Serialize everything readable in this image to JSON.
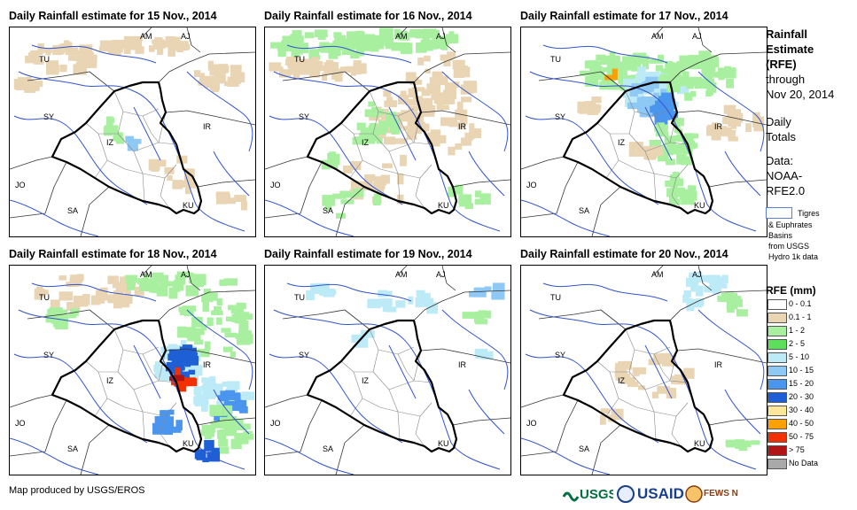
{
  "panels": [
    {
      "title": "Daily Rainfall estimate for 15 Nov., 2014",
      "day": 15
    },
    {
      "title": "Daily Rainfall estimate for 16 Nov., 2014",
      "day": 16
    },
    {
      "title": "Daily Rainfall estimate for 17 Nov., 2014",
      "day": 17
    },
    {
      "title": "Daily Rainfall estimate for 18 Nov., 2014",
      "day": 18
    },
    {
      "title": "Daily Rainfall estimate for 19 Nov., 2014",
      "day": 19
    },
    {
      "title": "Daily Rainfall estimate for 20 Nov., 2014",
      "day": 20
    }
  ],
  "country_labels": {
    "am": "AM",
    "aj": "AJ",
    "tu": "TU",
    "sy": "SY",
    "ir": "IR",
    "iz": "IZ",
    "jo": "JO",
    "sa": "SA",
    "ku": "KU"
  },
  "side": {
    "heading_1": "Rainfall",
    "heading_2": "Estimate",
    "heading_3": "(RFE)",
    "line_1": "through",
    "line_2": "Nov 20, 2014",
    "daily_1": "Daily",
    "daily_2": "Totals",
    "data_1": "Data:",
    "data_2": "NOAA-",
    "data_3": "RFE2.0",
    "basin_1": "Tigres",
    "basin_2": "& Euphrates",
    "basin_3": "Basins",
    "basin_4": "from USGS",
    "basin_5": "Hydro 1k data"
  },
  "legend": {
    "title": "RFE (mm)",
    "items": [
      {
        "label": "0 - 0.1",
        "color": "#ffffff"
      },
      {
        "label": "0.1 - 1",
        "color": "#e9d5b4"
      },
      {
        "label": "1 - 2",
        "color": "#a8f0a0"
      },
      {
        "label": "2 - 5",
        "color": "#5ce05c"
      },
      {
        "label": "5 - 10",
        "color": "#bdeaf7"
      },
      {
        "label": "10 - 15",
        "color": "#8ec8f5"
      },
      {
        "label": "15 - 20",
        "color": "#4a95ee"
      },
      {
        "label": "20 - 30",
        "color": "#1f5fd6"
      },
      {
        "label": "30 - 40",
        "color": "#fde59a"
      },
      {
        "label": "40 - 50",
        "color": "#fba000"
      },
      {
        "label": "50 - 75",
        "color": "#f33000"
      },
      {
        "label": "> 75",
        "color": "#b01414"
      },
      {
        "label": "No Data",
        "color": "#a9a9a9"
      }
    ]
  },
  "footer": {
    "credit": "Map produced by USGS/EROS"
  },
  "logos": {
    "usgs": "USGS",
    "usaid": "USAID",
    "fews": "FEWS NET"
  }
}
